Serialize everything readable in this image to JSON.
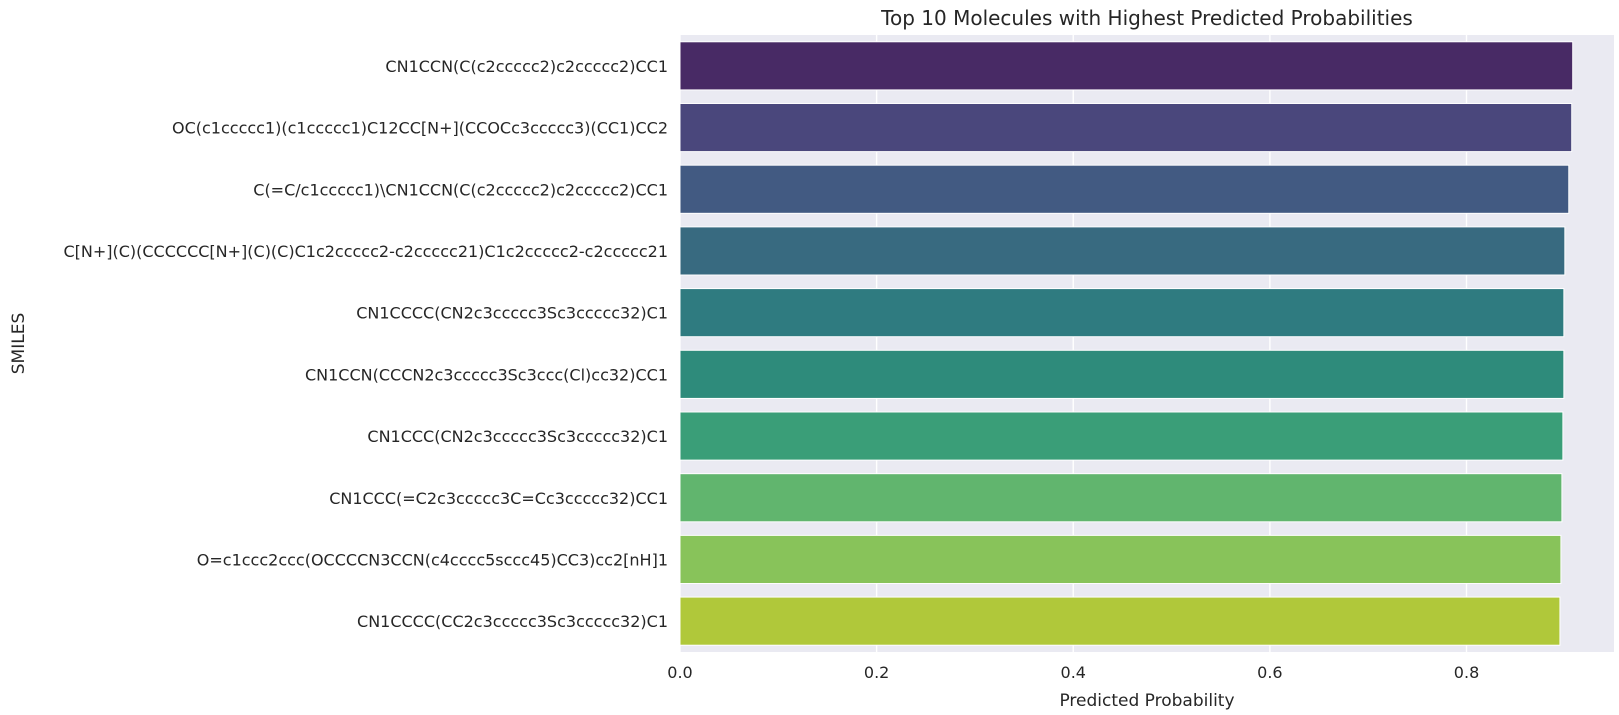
{
  "chart_data": {
    "type": "bar",
    "orientation": "horizontal",
    "title": "Top 10 Molecules with Highest Predicted Probabilities",
    "xlabel": "Predicted Probability",
    "ylabel": "SMILES",
    "xlim": [
      0.0,
      0.95
    ],
    "xticks": [
      "0.0",
      "0.2",
      "0.4",
      "0.6",
      "0.8"
    ],
    "grid": true,
    "categories": [
      "CN1CCN(C(c2ccccc2)c2ccccc2)CC1",
      "OC(c1ccccc1)(c1ccccc1)C12CC[N+](CCOCc3ccccc3)(CC1)CC2",
      "C(=C/c1ccccc1)\\CN1CCN(C(c2ccccc2)c2ccccc2)CC1",
      "C[N+](C)(CCCCCC[N+](C)(C)C1c2ccccc2-c2ccccc21)C1c2ccccc2-c2ccccc21",
      "CN1CCCC(CN2c3ccccc3Sc3ccccc32)C1",
      "CN1CCN(CCCN2c3ccccc3Sc3ccc(Cl)cc32)CC1",
      "CN1CCC(CN2c3ccccc3Sc3ccccc32)C1",
      "CN1CCC(=C2c3ccccc3C=Cc3ccccc32)CC1",
      "O=c1ccc2ccc(OCCCCN3CCN(c4cccc5sccc45)CC3)cc2[nH]1",
      "CN1CCCC(CC2c3ccccc3Sc3ccccc32)C1"
    ],
    "values": [
      0.908,
      0.907,
      0.904,
      0.9,
      0.899,
      0.899,
      0.898,
      0.897,
      0.896,
      0.895
    ],
    "colors": [
      "#482a65",
      "#4a477c",
      "#425a82",
      "#386a80",
      "#2f7b80",
      "#2e8b7b",
      "#3a9e78",
      "#61b56e",
      "#88c35a",
      "#b0c83a"
    ]
  }
}
